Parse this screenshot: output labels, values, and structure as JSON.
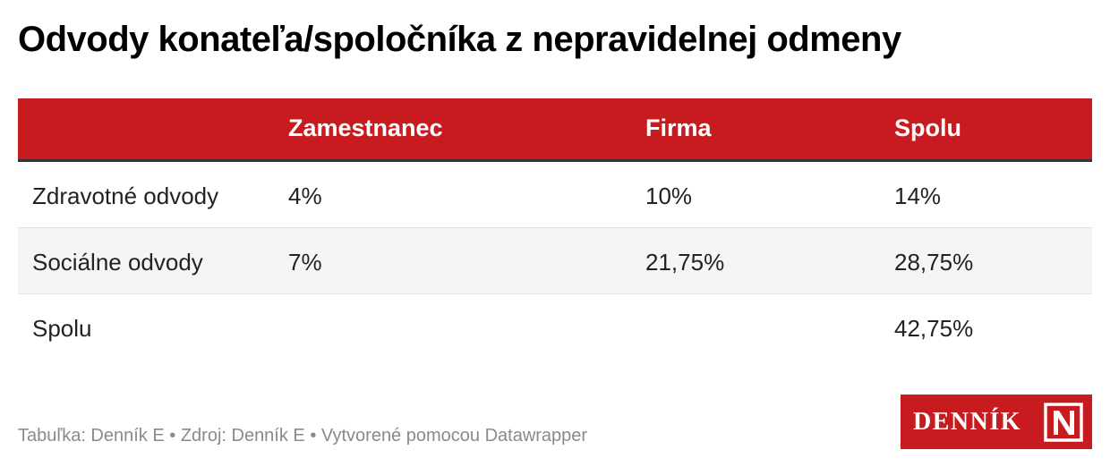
{
  "title": "Odvody konateľa/spoločníka z nepravidelnej odmeny",
  "chart_data": {
    "type": "table",
    "title": "Odvody konateľa/spoločníka z nepravidelnej odmeny",
    "columns": [
      "",
      "Zamestnanec",
      "Firma",
      "Spolu"
    ],
    "rows": [
      [
        "Zdravotné odvody",
        "4%",
        "10%",
        "14%"
      ],
      [
        "Sociálne odvody",
        "7%",
        "21,75%",
        "28,75%"
      ],
      [
        "Spolu",
        "",
        "",
        "42,75%"
      ]
    ]
  },
  "footer": "Tabuľka: Denník E • Zdroj: Denník E • Vytvorené pomocou Datawrapper",
  "logo": {
    "text": "DENNÍK",
    "mark_letter": "N",
    "background_color": "#c81b1f"
  },
  "colors": {
    "header_bg": "#c81b1f",
    "header_text": "#ffffff",
    "row_shade": "#f5f5f5",
    "footer_text": "#8a8a8a"
  }
}
